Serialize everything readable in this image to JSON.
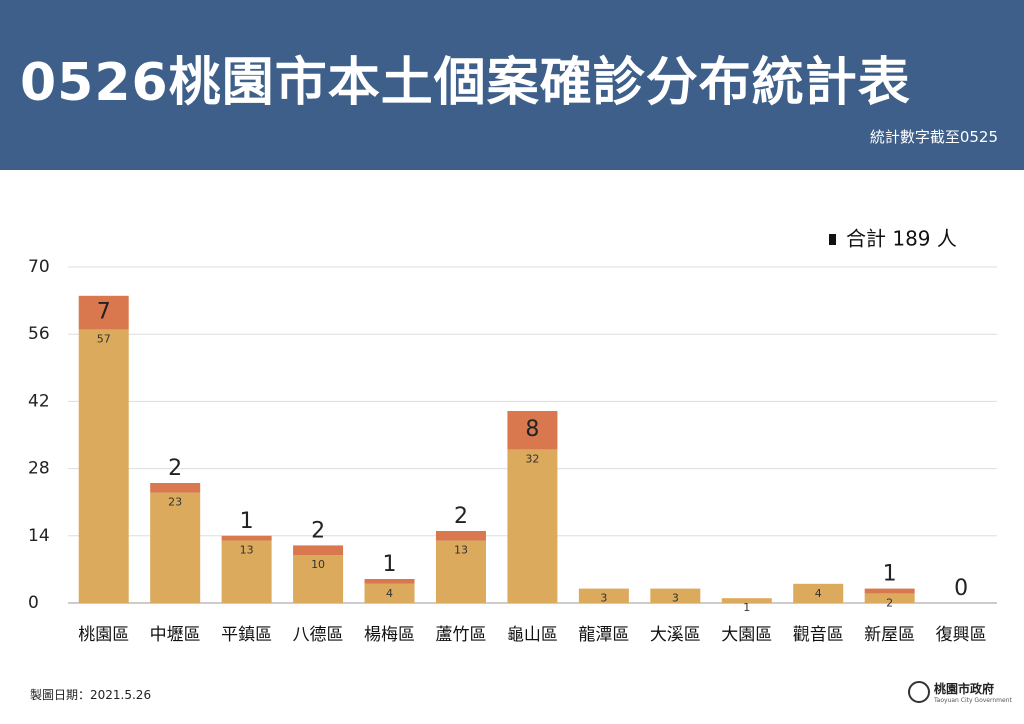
{
  "header": {
    "title": "0526桃園市本土個案確診分布統計表",
    "subtitle": "統計數字截至0525"
  },
  "chart_data": {
    "type": "stacked_bar",
    "categories": [
      "桃園區",
      "中壢區",
      "平鎮區",
      "八德區",
      "楊梅區",
      "蘆竹區",
      "龜山區",
      "龍潭區",
      "大溪區",
      "大園區",
      "觀音區",
      "新屋區",
      "復興區"
    ],
    "series": [
      {
        "color": "#dcaa5c",
        "values": [
          57,
          23,
          13,
          10,
          4,
          13,
          32,
          3,
          3,
          1,
          4,
          2,
          null
        ]
      },
      {
        "color": "#d9784f",
        "values": [
          7,
          2,
          1,
          2,
          1,
          2,
          8,
          null,
          null,
          null,
          null,
          1,
          0
        ]
      }
    ],
    "legend_text": "合計 189 人",
    "ylim": [
      0,
      70
    ],
    "yticks": [
      0,
      14,
      28,
      42,
      56,
      70
    ],
    "grid": true
  },
  "footer": {
    "date": "製圖日期：2021.5.26",
    "logo_name": "桃園市政府",
    "logo_en": "Taoyuan City Government"
  }
}
